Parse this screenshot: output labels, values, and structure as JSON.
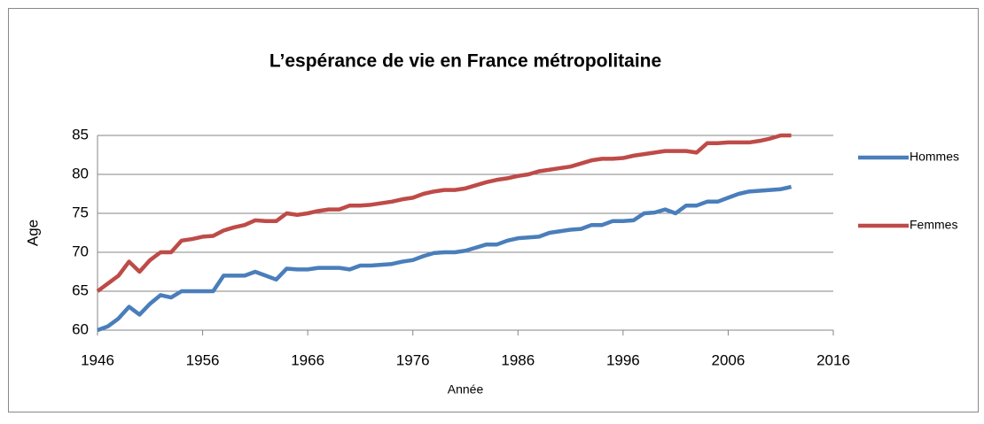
{
  "chart_data": {
    "type": "line",
    "title": "L’espérance de vie en France métropolitaine",
    "xlabel": "Année",
    "ylabel": "Age",
    "x": [
      1946,
      1947,
      1948,
      1949,
      1950,
      1951,
      1952,
      1953,
      1954,
      1955,
      1956,
      1957,
      1958,
      1959,
      1960,
      1961,
      1962,
      1963,
      1964,
      1965,
      1966,
      1967,
      1968,
      1969,
      1970,
      1971,
      1972,
      1973,
      1974,
      1975,
      1976,
      1977,
      1978,
      1979,
      1980,
      1981,
      1982,
      1983,
      1984,
      1985,
      1986,
      1987,
      1988,
      1989,
      1990,
      1991,
      1992,
      1993,
      1994,
      1995,
      1996,
      1997,
      1998,
      1999,
      2000,
      2001,
      2002,
      2003,
      2004,
      2005,
      2006,
      2007,
      2008,
      2009,
      2010,
      2011,
      2012
    ],
    "series": [
      {
        "name": "Hommes",
        "color": "#4a7ebb",
        "values": [
          60.0,
          60.5,
          61.5,
          63,
          62,
          63.4,
          64.5,
          64.2,
          65,
          65,
          65,
          65,
          67,
          67,
          67,
          67.5,
          67,
          66.5,
          67.9,
          67.8,
          67.8,
          68,
          68,
          68,
          67.8,
          68.3,
          68.3,
          68.4,
          68.5,
          68.8,
          69,
          69.5,
          69.9,
          70,
          70,
          70.2,
          70.6,
          71,
          71,
          71.5,
          71.8,
          71.9,
          72,
          72.5,
          72.7,
          72.9,
          73,
          73.5,
          73.5,
          74,
          74,
          74.1,
          75,
          75.1,
          75.5,
          75,
          76,
          76,
          76.5,
          76.5,
          77,
          77.5,
          77.8,
          77.9,
          78,
          78.1,
          78.4
        ]
      },
      {
        "name": "Femmes",
        "color": "#be4b48",
        "values": [
          65,
          66,
          67,
          68.8,
          67.5,
          69,
          70,
          70,
          71.5,
          71.7,
          72,
          72.1,
          72.8,
          73.2,
          73.5,
          74.1,
          74,
          74,
          75,
          74.8,
          75,
          75.3,
          75.5,
          75.5,
          76,
          76,
          76.1,
          76.3,
          76.5,
          76.8,
          77,
          77.5,
          77.8,
          78,
          78,
          78.2,
          78.6,
          79,
          79.3,
          79.5,
          79.8,
          80,
          80.4,
          80.6,
          80.8,
          81,
          81.4,
          81.8,
          82,
          82,
          82.1,
          82.4,
          82.6,
          82.8,
          83,
          83,
          83,
          82.8,
          84,
          84,
          84.1,
          84.1,
          84.1,
          84.3,
          84.6,
          85,
          85
        ]
      }
    ],
    "xlim": [
      1946,
      2016
    ],
    "xticks": [
      1946,
      1956,
      1966,
      1976,
      1986,
      1996,
      2006,
      2016
    ],
    "ylim": [
      60,
      85
    ],
    "yticks": [
      60,
      65,
      70,
      75,
      80,
      85
    ],
    "grid": true,
    "legend": "right"
  }
}
